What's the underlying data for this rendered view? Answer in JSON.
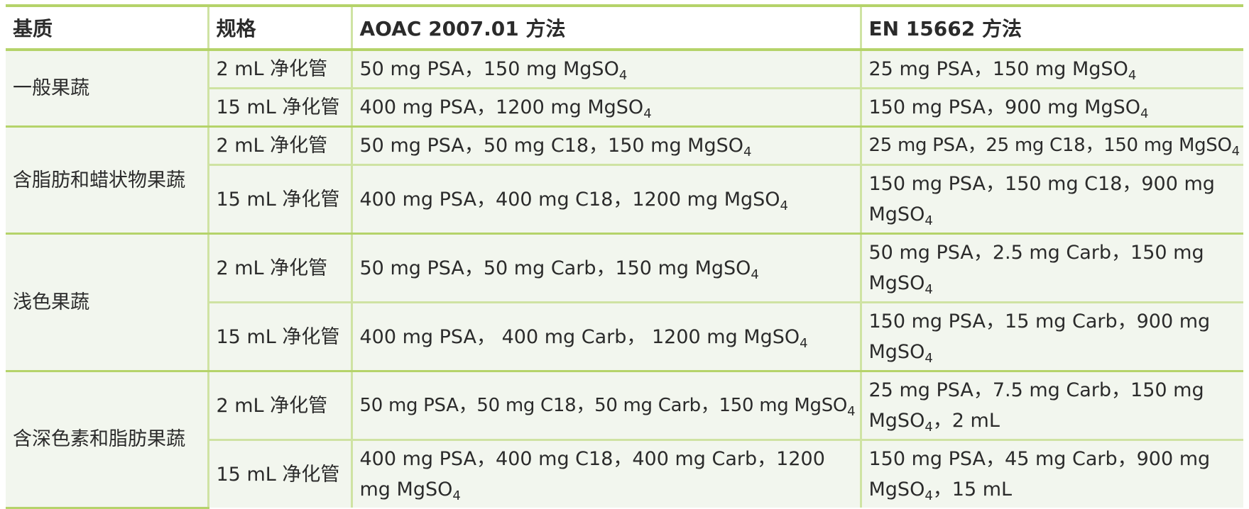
{
  "headers": [
    "基质",
    "规格",
    "AOAC 2007.01 方法",
    "EN 15662 方法"
  ],
  "groups": [
    {
      "matrix": "一般果蔬",
      "rows": [
        {
          "spec": "2 mL 净化管",
          "aoac": "50 mg PSA，150 mg MgSO",
          "aoac_sub": "4",
          "aoac_after": "",
          "en": "25 mg PSA，150 mg MgSO",
          "en_sub": "4",
          "en_after": ""
        },
        {
          "spec": "15 mL 净化管",
          "aoac": "400 mg PSA，1200 mg MgSO",
          "aoac_sub": "4",
          "aoac_after": "",
          "en": "150 mg PSA，900 mg MgSO",
          "en_sub": "4",
          "en_after": ""
        }
      ]
    },
    {
      "matrix": "含脂肪和蜡状物果蔬",
      "rows": [
        {
          "spec": "2 mL 净化管",
          "aoac": "50 mg PSA，50 mg C18，150 mg MgSO",
          "aoac_sub": "4",
          "aoac_after": "",
          "en": "25 mg PSA，25 mg C18，150 mg MgSO",
          "en_sub": "4",
          "en_after": ""
        },
        {
          "spec": "15 mL 净化管",
          "aoac": "400 mg PSA，400 mg C18，1200 mg MgSO",
          "aoac_sub": "4",
          "aoac_after": "",
          "en": "150 mg PSA，150 mg C18，900 mg MgSO",
          "en_sub": "4",
          "en_after": ""
        }
      ]
    },
    {
      "matrix": "浅色果蔬",
      "rows": [
        {
          "spec": "2 mL 净化管",
          "aoac": "50 mg PSA，50 mg Carb，150 mg MgSO",
          "aoac_sub": "4",
          "aoac_after": "",
          "en": "50 mg PSA，2.5 mg Carb，150 mg MgSO",
          "en_sub": "4",
          "en_after": ""
        },
        {
          "spec": "15 mL 净化管",
          "aoac": "400 mg PSA， 400 mg Carb， 1200 mg MgSO",
          "aoac_sub": "4",
          "aoac_after": "",
          "en": "150 mg PSA，15 mg Carb，900 mg MgSO",
          "en_sub": "4",
          "en_after": ""
        }
      ]
    },
    {
      "matrix": "含深色素和脂肪果蔬",
      "rows": [
        {
          "spec": "2 mL 净化管",
          "aoac": "50 mg PSA，50 mg C18，50 mg Carb，150 mg MgSO",
          "aoac_sub": "4",
          "aoac_after": "",
          "en": "25 mg PSA，7.5 mg Carb，150 mg MgSO",
          "en_sub": "4",
          "en_after": "，2 mL"
        },
        {
          "spec": "15 mL 净化管",
          "aoac": "400 mg PSA，400 mg C18，400 mg Carb，1200 mg MgSO",
          "aoac_sub": "4",
          "aoac_after": "",
          "en": "150 mg PSA，45 mg Carb，900 mg MgSO",
          "en_sub": "4",
          "en_after": "，15 mL"
        }
      ]
    }
  ]
}
